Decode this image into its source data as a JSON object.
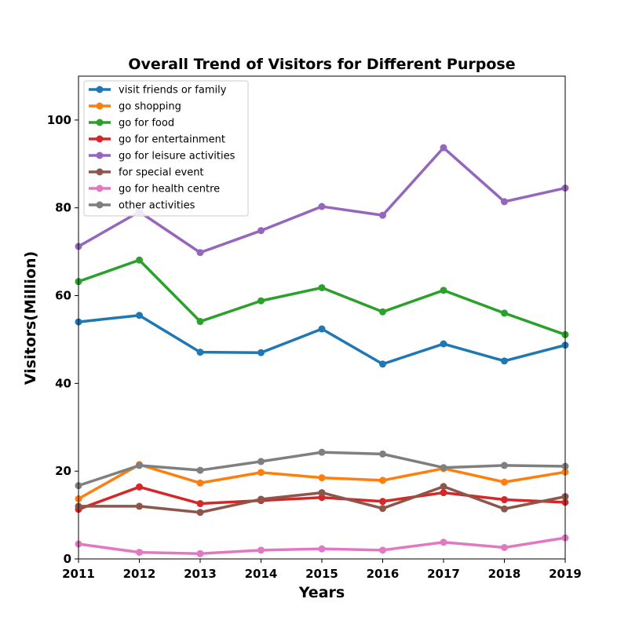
{
  "chart_data": {
    "type": "line",
    "title": "Overall Trend of Visitors for Different Purpose",
    "xlabel": "Years",
    "ylabel": "Visitors(Million)",
    "x": [
      2011,
      2012,
      2013,
      2014,
      2015,
      2016,
      2017,
      2018,
      2019
    ],
    "xlim": [
      2011,
      2019
    ],
    "ylim": [
      0,
      110
    ],
    "xticks": [
      "2011",
      "2012",
      "2013",
      "2014",
      "2015",
      "2016",
      "2017",
      "2018",
      "2019"
    ],
    "yticks": [
      "0",
      "20",
      "40",
      "60",
      "80",
      "100"
    ],
    "grid": false,
    "legend_position": "top-left",
    "series": [
      {
        "name": "visit friends or family",
        "color": "#1f77b4",
        "values": [
          54.0,
          55.5,
          47.1,
          47.0,
          52.4,
          44.4,
          49.0,
          45.1,
          48.7
        ]
      },
      {
        "name": "go shopping",
        "color": "#ff7f0e",
        "values": [
          13.7,
          21.5,
          17.3,
          19.7,
          18.5,
          17.9,
          20.6,
          17.5,
          19.8
        ]
      },
      {
        "name": "go for food",
        "color": "#2ca02c",
        "values": [
          63.2,
          68.1,
          54.1,
          58.8,
          61.8,
          56.3,
          61.2,
          56.0,
          51.1
        ]
      },
      {
        "name": "go for entertainment",
        "color": "#d62728",
        "values": [
          11.3,
          16.4,
          12.6,
          13.3,
          14.0,
          13.1,
          15.1,
          13.5,
          12.9
        ]
      },
      {
        "name": "go for leisure activities",
        "color": "#9467bd",
        "values": [
          71.2,
          79.1,
          69.8,
          74.8,
          80.3,
          78.3,
          93.7,
          81.4,
          84.5
        ]
      },
      {
        "name": "for special event",
        "color": "#8c564b",
        "values": [
          12.0,
          12.0,
          10.6,
          13.6,
          15.1,
          11.5,
          16.5,
          11.4,
          14.2
        ]
      },
      {
        "name": "go for health centre",
        "color": "#e377c2",
        "values": [
          3.4,
          1.5,
          1.2,
          2.0,
          2.3,
          2.0,
          3.8,
          2.6,
          4.8
        ]
      },
      {
        "name": "other activities",
        "color": "#7f7f7f",
        "values": [
          16.7,
          21.3,
          20.2,
          22.2,
          24.3,
          23.9,
          20.8,
          21.3,
          21.1
        ]
      }
    ]
  }
}
